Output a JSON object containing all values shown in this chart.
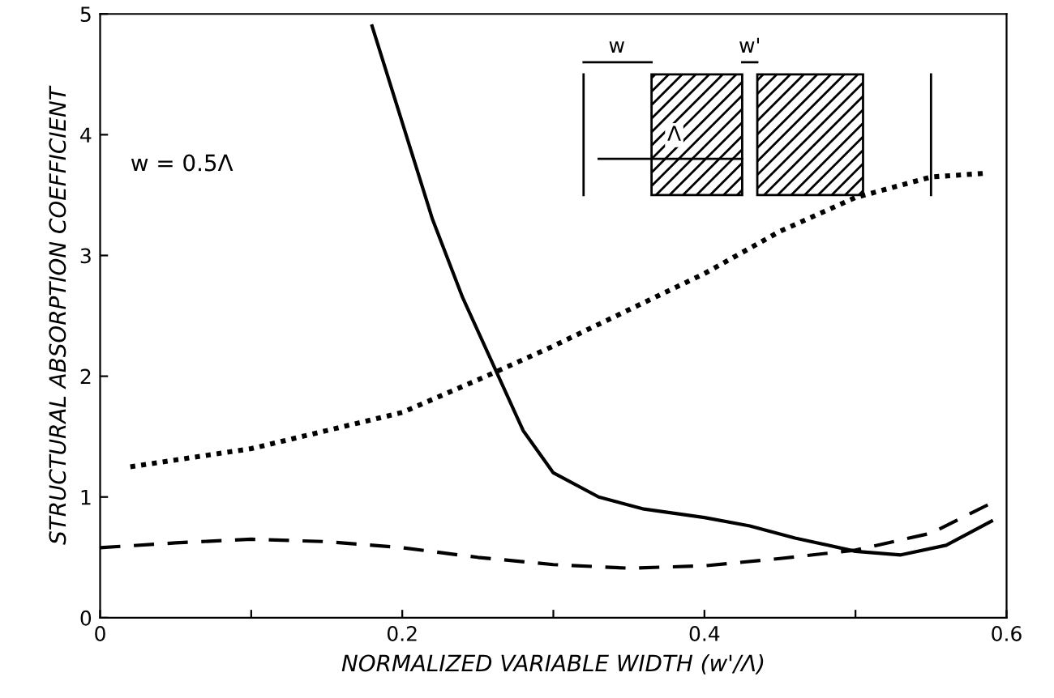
{
  "chart_data": {
    "type": "line",
    "xlabel": "NORMALIZED VARIABLE WIDTH (w'/Λ)",
    "ylabel": "STRUCTURAL ABSORPTION COEFFICIENT",
    "xlim": [
      0,
      0.6
    ],
    "ylim": [
      0,
      5
    ],
    "xticks": [
      0,
      {
        "value": 0.1,
        "label": null
      },
      0.2,
      {
        "value": 0.3,
        "label": null
      },
      0.4,
      {
        "value": 0.5,
        "label": null
      },
      0.6
    ],
    "yticks": [
      0,
      1,
      2,
      3,
      4,
      5
    ],
    "grid": false,
    "legend": false,
    "annotations": [
      "w = 0.5Λ",
      "w",
      "w'",
      "Λ"
    ],
    "series": [
      {
        "color": "#000000",
        "line_style": "solid",
        "x": [
          0.18,
          0.2,
          0.22,
          0.24,
          0.26,
          0.28,
          0.3,
          0.33,
          0.36,
          0.4,
          0.43,
          0.46,
          0.5,
          0.53,
          0.56,
          0.59
        ],
        "values": [
          4.9,
          4.1,
          3.3,
          2.65,
          2.1,
          1.55,
          1.2,
          1.0,
          0.9,
          0.83,
          0.76,
          0.66,
          0.55,
          0.52,
          0.6,
          0.8
        ]
      },
      {
        "color": "#000000",
        "line_style": "dotted",
        "x": [
          0.02,
          0.1,
          0.2,
          0.25,
          0.3,
          0.35,
          0.4,
          0.45,
          0.5,
          0.55,
          0.585
        ],
        "values": [
          1.25,
          1.4,
          1.7,
          1.97,
          2.25,
          2.55,
          2.85,
          3.2,
          3.48,
          3.65,
          3.68
        ]
      },
      {
        "color": "#000000",
        "line_style": "dashed",
        "x": [
          0.0,
          0.05,
          0.1,
          0.15,
          0.2,
          0.25,
          0.3,
          0.35,
          0.4,
          0.45,
          0.5,
          0.55,
          0.59
        ],
        "values": [
          0.58,
          0.62,
          0.65,
          0.63,
          0.58,
          0.5,
          0.44,
          0.41,
          0.43,
          0.49,
          0.56,
          0.7,
          0.95
        ]
      }
    ]
  }
}
